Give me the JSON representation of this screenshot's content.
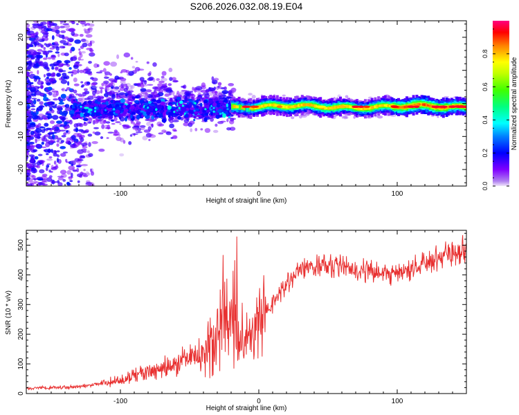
{
  "title": "S206.2026.032.08.19.E04",
  "chart_data": [
    {
      "type": "heatmap",
      "xlabel": "Height of straight line (km)",
      "ylabel": "Frequency (Hz)",
      "xlim": [
        -168,
        150
      ],
      "ylim": [
        -25,
        25
      ],
      "xticks": [
        -100,
        0,
        100
      ],
      "xtick_labels": [
        "-100",
        "0",
        "100"
      ],
      "yticks": [
        -20,
        -10,
        0,
        10,
        20
      ],
      "ytick_labels": [
        "-20",
        "-10",
        "0",
        "10",
        "20"
      ],
      "colorbar": {
        "label": "Normalized spectral amplitude",
        "range": [
          0,
          1
        ],
        "ticks": [
          0.0,
          0.2,
          0.4,
          0.6,
          0.8
        ],
        "tick_labels": [
          "0.0",
          "0.2",
          "0.4",
          "0.6",
          "0.8"
        ],
        "colormap": [
          "#f0e6fa",
          "#7f00ff",
          "#0000ff",
          "#00ffff",
          "#00ff00",
          "#ffff00",
          "#ff8000",
          "#ff0000",
          "#ff0080"
        ]
      },
      "regions": [
        {
          "name": "scattered noise",
          "x_range": [
            -168,
            -20
          ],
          "freq_range": [
            -25,
            25
          ],
          "amplitude": [
            0.05,
            0.3
          ]
        },
        {
          "name": "signal band",
          "x_range": [
            -20,
            150
          ],
          "freq_center": -1,
          "amplitude": [
            0.3,
            0.95
          ]
        }
      ]
    },
    {
      "type": "line",
      "xlabel": "Height of straight line (km)",
      "ylabel": "SNR (10 * v/v)",
      "xlim": [
        -168,
        150
      ],
      "ylim": [
        0,
        550
      ],
      "xticks": [
        -100,
        0,
        100
      ],
      "xtick_labels": [
        "-100",
        "0",
        "100"
      ],
      "yticks": [
        0,
        100,
        200,
        300,
        400,
        500
      ],
      "ytick_labels": [
        "0",
        "100",
        "200",
        "300",
        "400",
        "500"
      ],
      "color": "#e83030",
      "trend": {
        "x": [
          -168,
          -130,
          -100,
          -80,
          -60,
          -40,
          -30,
          -22,
          -15,
          -10,
          0,
          10,
          20,
          30,
          50,
          70,
          90,
          100,
          120,
          140,
          150
        ],
        "y": [
          18,
          22,
          45,
          75,
          100,
          140,
          190,
          260,
          230,
          170,
          240,
          300,
          370,
          420,
          435,
          420,
          405,
          400,
          440,
          475,
          490
        ]
      },
      "series": [
        {
          "name": "SNR",
          "values": "trend above with high-frequency noise"
        }
      ]
    }
  ]
}
